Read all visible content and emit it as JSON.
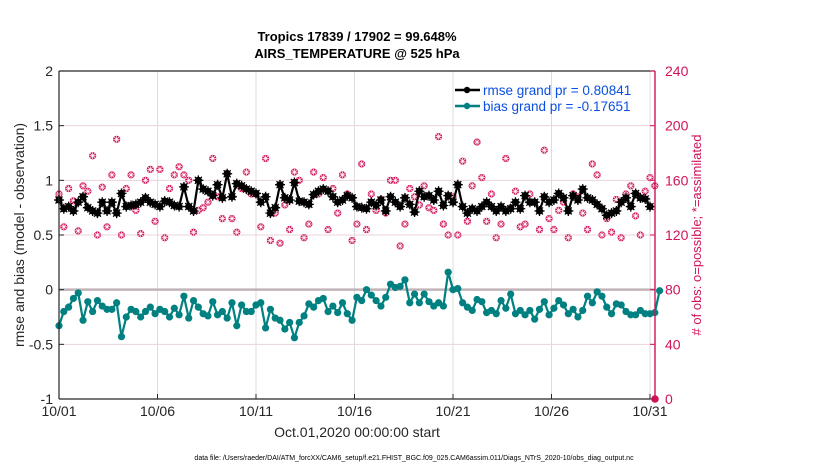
{
  "chart_data": {
    "type": "line",
    "title": [
      "Tropics 17839 / 17902 = 99.648%",
      "AIRS_TEMPERATURE @ 525 hPa"
    ],
    "xlabel": "Oct.01,2020 00:00:00 start",
    "ylabel": "rmse and bias (model - observation)",
    "ylabel_right": "# of obs: o=possible; *=assimilated",
    "ylim": [
      -1,
      2
    ],
    "ylim_right": [
      0,
      240
    ],
    "yticks": [
      "2",
      "1.5",
      "1",
      "0.5",
      "0",
      "-0.5",
      "-1"
    ],
    "yticks_right": [
      "240",
      "200",
      "160",
      "120",
      "80",
      "40",
      "0"
    ],
    "xticks": [
      "10/01",
      "10/06",
      "10/11",
      "10/16",
      "10/21",
      "10/26",
      "10/31"
    ],
    "x_range_days": [
      0,
      31.25
    ],
    "grid": true,
    "legend_position": "top-right",
    "legend": [
      "rmse grand pr = 0.80841",
      "bias grand pr = -0.17651"
    ],
    "colors": {
      "rmse": "#000000",
      "bias": "#008080",
      "obs": "#d0135a",
      "zero_line": "#c0b4b8"
    },
    "series": [
      {
        "name": "rmse grand pr = 0.80841",
        "values": [
          0.82,
          0.74,
          0.76,
          0.72,
          0.8,
          0.85,
          0.75,
          0.72,
          0.7,
          0.8,
          0.72,
          0.8,
          0.7,
          0.88,
          0.76,
          0.77,
          0.78,
          0.8,
          0.84,
          0.8,
          0.78,
          0.76,
          0.81,
          0.8,
          0.77,
          0.76,
          0.94,
          0.76,
          0.72,
          1.0,
          0.92,
          0.9,
          0.86,
          0.96,
          0.84,
          1.06,
          0.85,
          0.97,
          0.95,
          0.92,
          0.9,
          0.88,
          0.8,
          0.85,
          0.7,
          0.75,
          0.96,
          0.84,
          0.82,
          0.98,
          0.81,
          0.8,
          0.78,
          0.87,
          0.9,
          0.92,
          0.9,
          0.85,
          0.8,
          0.82,
          0.86,
          0.84,
          0.76,
          0.75,
          0.74,
          0.8,
          0.77,
          0.82,
          0.72,
          0.85,
          0.8,
          0.76,
          0.84,
          0.78,
          0.71,
          0.9,
          0.85,
          0.86,
          0.82,
          0.9,
          0.77,
          0.86,
          0.8,
          0.96,
          0.76,
          0.7,
          0.74,
          0.72,
          0.76,
          0.8,
          0.76,
          0.72,
          0.76,
          0.72,
          0.74,
          0.8,
          0.74,
          0.86,
          0.8,
          0.8,
          0.72,
          0.85,
          0.8,
          0.82,
          0.88,
          0.84,
          0.72,
          0.86,
          0.82,
          0.92,
          0.84,
          0.82,
          0.78,
          0.74,
          0.68,
          0.7,
          0.72,
          0.8,
          0.84,
          0.76,
          0.88,
          0.84,
          0.83,
          0.76
        ],
        "marker": "asterisk-dot"
      },
      {
        "name": "bias grand pr = -0.17651",
        "values": [
          -0.33,
          -0.2,
          -0.16,
          -0.08,
          -0.03,
          -0.28,
          -0.11,
          -0.2,
          -0.1,
          -0.15,
          -0.18,
          -0.18,
          -0.12,
          -0.43,
          -0.25,
          -0.18,
          -0.2,
          -0.25,
          -0.2,
          -0.16,
          -0.22,
          -0.18,
          -0.2,
          -0.25,
          -0.17,
          -0.23,
          -0.06,
          -0.26,
          -0.1,
          -0.16,
          -0.22,
          -0.24,
          -0.11,
          -0.23,
          -0.2,
          -0.26,
          -0.12,
          -0.33,
          -0.14,
          -0.2,
          -0.2,
          -0.14,
          -0.12,
          -0.35,
          -0.18,
          -0.26,
          -0.28,
          -0.36,
          -0.3,
          -0.44,
          -0.3,
          -0.24,
          -0.13,
          -0.16,
          -0.1,
          -0.08,
          -0.2,
          -0.15,
          -0.21,
          -0.12,
          -0.22,
          -0.28,
          -0.07,
          -0.1,
          0.0,
          -0.05,
          -0.1,
          -0.15,
          -0.07,
          0.05,
          0.02,
          0.03,
          0.09,
          -0.12,
          -0.04,
          -0.12,
          -0.04,
          -0.11,
          -0.15,
          -0.12,
          -0.15,
          0.16,
          0.0,
          0.01,
          -0.12,
          -0.16,
          -0.19,
          -0.09,
          -0.11,
          -0.21,
          -0.19,
          -0.22,
          -0.1,
          -0.17,
          -0.04,
          -0.22,
          -0.19,
          -0.23,
          -0.19,
          -0.27,
          -0.18,
          -0.11,
          -0.23,
          -0.17,
          -0.1,
          -0.14,
          -0.22,
          -0.18,
          -0.25,
          -0.19,
          -0.06,
          -0.12,
          -0.02,
          -0.06,
          -0.16,
          -0.22,
          -0.13,
          -0.14,
          -0.2,
          -0.23,
          -0.23,
          -0.19,
          -0.22,
          -0.22,
          -0.21,
          -0.01
        ],
        "marker": "dot"
      },
      {
        "name": "# of obs assimilated",
        "axis": "right",
        "values": [
          150,
          126,
          154,
          145,
          123,
          156,
          152,
          178,
          120,
          155,
          126,
          164,
          190,
          120,
          154,
          164,
          138,
          121,
          160,
          168,
          130,
          168,
          118,
          154,
          164,
          170,
          164,
          160,
          122,
          138,
          140,
          144,
          176,
          148,
          132,
          165,
          132,
          122,
          154,
          166,
          150,
          150,
          126,
          176,
          116,
          136,
          114,
          142,
          124,
          166,
          160,
          118,
          128,
          166,
          150,
          162,
          124,
          154,
          136,
          164,
          150,
          116,
          128,
          172,
          124,
          150,
          138,
          146,
          136,
          160,
          160,
          112,
          128,
          154,
          148,
          142,
          156,
          140,
          138,
          192,
          128,
          120,
          148,
          120,
          174,
          130,
          156,
          188,
          162,
          130,
          150,
          118,
          128,
          176,
          140,
          152,
          126,
          128,
          150,
          144,
          124,
          182,
          132,
          124,
          138,
          144,
          118,
          150,
          148,
          136,
          124,
          172,
          164,
          120,
          132,
          122,
          146,
          118,
          150,
          156,
          134,
          120,
          152,
          162,
          156
        ],
        "marker": "asterisk"
      }
    ],
    "obs_right_endpoint": 0
  },
  "footer": {
    "data_file": "data file: /Users/raeder/DAI/ATM_forcXX/CAM6_setup/f.e21.FHIST_BGC.f09_025.CAM6assim.011/Diags_NTrS_2020-10/obs_diag_output.nc"
  }
}
